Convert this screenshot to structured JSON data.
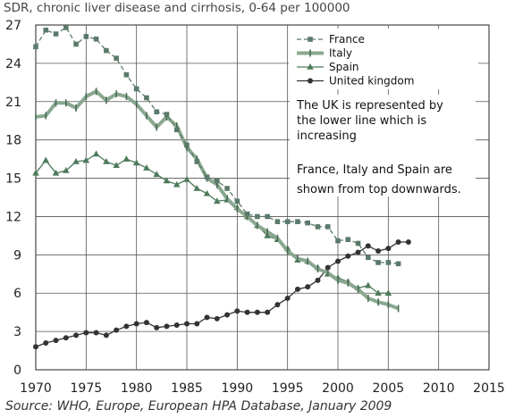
{
  "chart_data": {
    "type": "line",
    "title": "SDR, chronic liver disease and cirrhosis, 0-64 per 100000",
    "source": "Source: WHO, Europe, European HPA Database, January 2009",
    "xlim": [
      1970,
      2015
    ],
    "ylim": [
      0,
      27
    ],
    "x_ticks": [
      "1970",
      "1975",
      "1980",
      "1985",
      "1990",
      "1995",
      "2000",
      "2005",
      "2010",
      "2015"
    ],
    "y_ticks": [
      "0",
      "3",
      "6",
      "9",
      "12",
      "15",
      "18",
      "21",
      "24",
      "27"
    ],
    "grid": true,
    "legend_position": "top-right",
    "annotations": [
      "The UK is represented by",
      "the lower line which is",
      "increasing",
      "France, Italy and Spain are",
      "shown from top downwards."
    ],
    "series": [
      {
        "name": "France",
        "color": "#5a7a6a",
        "style": "dashed-square",
        "x": [
          1970,
          1971,
          1972,
          1973,
          1974,
          1975,
          1976,
          1977,
          1978,
          1979,
          1980,
          1981,
          1982,
          1983,
          1984,
          1985,
          1986,
          1987,
          1988,
          1989,
          1990,
          1991,
          1992,
          1993,
          1994,
          1995,
          1996,
          1997,
          1998,
          1999,
          2000,
          2001,
          2002,
          2003,
          2004,
          2005,
          2006
        ],
        "values": [
          25.3,
          26.6,
          26.3,
          26.8,
          25.5,
          26.1,
          25.9,
          25.0,
          24.4,
          23.1,
          22.0,
          21.3,
          20.2,
          20.0,
          18.8,
          17.6,
          16.3,
          15.1,
          14.8,
          14.2,
          13.2,
          12.2,
          12.0,
          12.0,
          11.6,
          11.6,
          11.6,
          11.5,
          11.2,
          11.2,
          10.1,
          10.2,
          9.9,
          8.8,
          8.4,
          8.4,
          8.3
        ]
      },
      {
        "name": "Italy",
        "color": "#8aa88f",
        "style": "thick-bar",
        "x": [
          1970,
          1971,
          1972,
          1973,
          1974,
          1975,
          1976,
          1977,
          1978,
          1979,
          1980,
          1981,
          1982,
          1983,
          1984,
          1985,
          1986,
          1987,
          1988,
          1989,
          1990,
          1991,
          1992,
          1993,
          1994,
          1995,
          1996,
          1997,
          1998,
          1999,
          2000,
          2001,
          2002,
          2003,
          2004,
          2005,
          2006
        ],
        "values": [
          19.8,
          19.9,
          20.9,
          20.9,
          20.5,
          21.4,
          21.8,
          21.1,
          21.6,
          21.4,
          20.8,
          19.9,
          19.0,
          19.8,
          19.1,
          17.4,
          16.5,
          15.0,
          14.5,
          13.4,
          12.6,
          12.0,
          11.3,
          10.8,
          10.3,
          9.3,
          8.7,
          8.5,
          7.9,
          7.6,
          7.0,
          6.8,
          6.3,
          5.6,
          5.3,
          5.1,
          4.8
        ]
      },
      {
        "name": "Spain",
        "color": "#4e7a5c",
        "style": "triangle",
        "x": [
          1970,
          1971,
          1972,
          1973,
          1974,
          1975,
          1976,
          1977,
          1978,
          1979,
          1980,
          1981,
          1982,
          1983,
          1984,
          1985,
          1986,
          1987,
          1988,
          1989,
          1990,
          1991,
          1992,
          1993,
          1994,
          1995,
          1996,
          1997,
          1998,
          1999,
          2000,
          2001,
          2002,
          2003,
          2004,
          2005
        ],
        "values": [
          15.4,
          16.4,
          15.4,
          15.6,
          16.3,
          16.4,
          16.9,
          16.3,
          16.0,
          16.5,
          16.2,
          15.8,
          15.3,
          14.8,
          14.5,
          14.9,
          14.2,
          13.8,
          13.2,
          13.3,
          12.7,
          12.0,
          11.3,
          10.5,
          10.2,
          9.5,
          8.6,
          8.5,
          8.0,
          7.5,
          7.2,
          6.9,
          6.4,
          6.6,
          6.0,
          6.0
        ]
      },
      {
        "name": "United kingdom",
        "color": "#333333",
        "style": "circle",
        "x": [
          1970,
          1971,
          1972,
          1973,
          1974,
          1975,
          1976,
          1977,
          1978,
          1979,
          1980,
          1981,
          1982,
          1983,
          1984,
          1985,
          1986,
          1987,
          1988,
          1989,
          1990,
          1991,
          1992,
          1993,
          1994,
          1995,
          1996,
          1997,
          1998,
          1999,
          2000,
          2001,
          2002,
          2003,
          2004,
          2005,
          2006,
          2007
        ],
        "values": [
          1.8,
          2.1,
          2.3,
          2.5,
          2.7,
          2.9,
          2.9,
          2.7,
          3.1,
          3.4,
          3.6,
          3.7,
          3.3,
          3.4,
          3.5,
          3.6,
          3.6,
          4.1,
          4.0,
          4.3,
          4.6,
          4.5,
          4.5,
          4.5,
          5.1,
          5.6,
          6.3,
          6.5,
          7.0,
          8.0,
          8.5,
          8.9,
          9.2,
          9.7,
          9.3,
          9.5,
          10.0,
          10.0
        ]
      }
    ]
  }
}
